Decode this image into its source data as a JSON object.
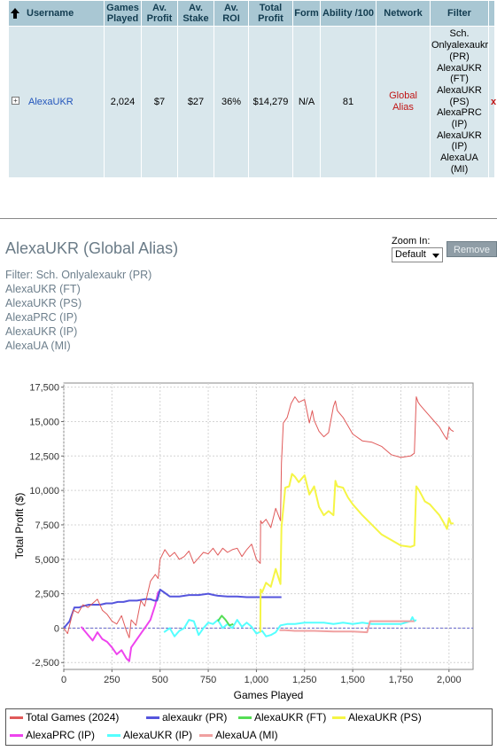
{
  "table": {
    "headers": [
      "Username",
      "Games Played",
      "Av. Profit",
      "Av. Stake",
      "Av. ROI",
      "Total Profit",
      "Form",
      "Ability /100",
      "Network",
      "Filter"
    ],
    "row": {
      "username": "AlexaUKR",
      "games_played": "2,024",
      "avg_profit": "$7",
      "avg_stake": "$27",
      "avg_roi": "36%",
      "total_profit": "$14,279",
      "form": "N/A",
      "ability": "81",
      "network": "Global Alias",
      "filter_lines": [
        "Sch.",
        "Onlyalexaukr",
        "(PR)",
        "AlexaUKR",
        "(FT)",
        "AlexaUKR",
        "(PS)",
        "AlexaPRC",
        "(IP)",
        "AlexaUKR",
        "(IP)",
        "AlexaUA",
        "(MI)"
      ],
      "remove": "x"
    }
  },
  "graph": {
    "title": "AlexaUKR (Global Alias)",
    "filter_lines": [
      "Filter: Sch. Onlyalexaukr (PR)",
      "AlexaUKR (FT)",
      "AlexaUKR (PS)",
      "AlexaPRC (IP)",
      "AlexaUKR (IP)",
      "AlexaUA (MI)"
    ],
    "zoom_label": "Zoom In:",
    "zoom_value": "Default",
    "remove_label": "Remove"
  },
  "chart_data": {
    "type": "line",
    "xlabel": "Games Played",
    "ylabel": "Total Profit ($)",
    "xlim": [
      0,
      2125
    ],
    "ylim": [
      -3000,
      17800
    ],
    "xticks": [
      "0",
      "250",
      "500",
      "750",
      "1,000",
      "1,250",
      "1,500",
      "1,750",
      "2,000"
    ],
    "xtick_values": [
      0,
      250,
      500,
      750,
      1000,
      1250,
      1500,
      1750,
      2000
    ],
    "yticks": [
      "-2,500",
      "0",
      "2,500",
      "5,000",
      "7,500",
      "10,000",
      "12,500",
      "15,000",
      "17,500"
    ],
    "ytick_values": [
      -2500,
      0,
      2500,
      5000,
      7500,
      10000,
      12500,
      15000,
      17500
    ],
    "grid": true,
    "legend_position": "bottom",
    "series": [
      {
        "name": "Total Games (2024)",
        "color": "#e05a5a",
        "width": 1,
        "x": [
          0,
          20,
          30,
          50,
          75,
          100,
          125,
          150,
          175,
          200,
          225,
          250,
          275,
          300,
          325,
          340,
          350,
          375,
          400,
          420,
          430,
          450,
          475,
          490,
          500,
          525,
          550,
          575,
          600,
          625,
          650,
          675,
          700,
          725,
          750,
          775,
          800,
          825,
          850,
          875,
          900,
          925,
          950,
          975,
          1000,
          1020,
          1022,
          1030,
          1050,
          1075,
          1100,
          1125,
          1130,
          1140,
          1160,
          1180,
          1200,
          1220,
          1250,
          1275,
          1290,
          1300,
          1325,
          1350,
          1375,
          1400,
          1410,
          1420,
          1450,
          1475,
          1500,
          1550,
          1600,
          1650,
          1700,
          1750,
          1800,
          1820,
          1830,
          1840,
          1850,
          1875,
          1900,
          1925,
          1950,
          1975,
          1990,
          2000,
          2010,
          2024
        ],
        "y": [
          0,
          -400,
          200,
          1300,
          1100,
          1700,
          1500,
          1800,
          2100,
          1300,
          1000,
          500,
          300,
          900,
          -200,
          -700,
          600,
          200,
          2000,
          1600,
          2200,
          3400,
          3900,
          3600,
          5000,
          5700,
          5200,
          5500,
          5000,
          5200,
          5600,
          4700,
          5100,
          5500,
          5400,
          5800,
          5300,
          5800,
          5500,
          5700,
          5800,
          5200,
          5700,
          6100,
          5000,
          4700,
          7800,
          7600,
          7900,
          7300,
          8700,
          7800,
          12000,
          14900,
          15300,
          16300,
          16800,
          16400,
          16600,
          14900,
          15800,
          15100,
          14300,
          13900,
          14200,
          16100,
          16500,
          15800,
          15300,
          14700,
          14100,
          13600,
          13500,
          13200,
          12600,
          12400,
          12500,
          12700,
          16800,
          16400,
          16200,
          15800,
          15400,
          15000,
          14600,
          14000,
          13700,
          14600,
          14400,
          14279
        ]
      },
      {
        "name": "alexaukr (PR)",
        "color": "#5555dd",
        "width": 2,
        "x": [
          0,
          30,
          45,
          55,
          80,
          100,
          130,
          160,
          190,
          220,
          250,
          280,
          310,
          340,
          380,
          420,
          450,
          470,
          485,
          500,
          520,
          550,
          600,
          650,
          700,
          750,
          780,
          800,
          850,
          900,
          950,
          1000,
          1050,
          1100,
          1130
        ],
        "y": [
          0,
          500,
          1100,
          1500,
          1500,
          1600,
          1700,
          1700,
          1700,
          1800,
          1800,
          1900,
          1900,
          2000,
          2000,
          2100,
          2100,
          2000,
          2000,
          2800,
          2600,
          2300,
          2300,
          2400,
          2400,
          2500,
          2400,
          2350,
          2300,
          2300,
          2250,
          2250,
          2250,
          2250,
          2250
        ]
      },
      {
        "name": "AlexaUKR (FT)",
        "color": "#55dd55",
        "width": 2,
        "x": [
          800,
          820,
          840,
          860,
          880
        ],
        "y": [
          500,
          900,
          600,
          200,
          300
        ]
      },
      {
        "name": "AlexaUKR (PS)",
        "color": "#f5f545",
        "width": 2,
        "x": [
          1020,
          1022,
          1030,
          1050,
          1075,
          1100,
          1125,
          1130,
          1150,
          1170,
          1185,
          1200,
          1220,
          1250,
          1275,
          1300,
          1325,
          1350,
          1375,
          1400,
          1410,
          1420,
          1450,
          1475,
          1500,
          1550,
          1600,
          1650,
          1700,
          1750,
          1800,
          1820,
          1830,
          1845,
          1860,
          1875,
          1900,
          1925,
          1950,
          1975,
          1990,
          2000,
          2010,
          2024
        ],
        "y": [
          -300,
          2800,
          2600,
          3300,
          3000,
          4300,
          3200,
          7300,
          10200,
          10300,
          11200,
          11000,
          10600,
          11100,
          9700,
          10300,
          8800,
          8200,
          8500,
          8200,
          10700,
          10300,
          10200,
          9500,
          9000,
          8200,
          7500,
          6800,
          6400,
          6000,
          5900,
          6000,
          10300,
          10000,
          9600,
          9200,
          9000,
          8600,
          8200,
          7600,
          7200,
          8000,
          7600,
          7600
        ]
      },
      {
        "name": "AlexaPRC (IP)",
        "color": "#ee44ee",
        "width": 2,
        "x": [
          90,
          120,
          150,
          175,
          200,
          225,
          250,
          275,
          300,
          325,
          340,
          350,
          375,
          400,
          425,
          450,
          475,
          490,
          500
        ],
        "y": [
          100,
          -400,
          -900,
          -300,
          -800,
          -1000,
          -1400,
          -1900,
          -1600,
          -2200,
          -2400,
          -1400,
          -900,
          -400,
          100,
          600,
          1700,
          2600,
          2700
        ]
      },
      {
        "name": "AlexaUKR (IP)",
        "color": "#55ffff",
        "width": 2,
        "x": [
          520,
          550,
          575,
          600,
          625,
          650,
          675,
          700,
          725,
          750,
          775,
          800,
          825,
          850,
          875,
          900,
          925,
          950,
          975,
          1000,
          1030,
          1050,
          1075,
          1100,
          1125,
          1160,
          1200,
          1250,
          1300,
          1350,
          1400,
          1450,
          1500,
          1550,
          1600,
          1650,
          1700,
          1750,
          1800,
          1810,
          1820,
          1830
        ],
        "y": [
          -300,
          0,
          -600,
          -200,
          0,
          600,
          500,
          -500,
          0,
          400,
          300,
          600,
          0,
          300,
          0,
          600,
          100,
          400,
          100,
          -400,
          -200,
          -600,
          -500,
          -300,
          200,
          300,
          300,
          400,
          400,
          400,
          300,
          400,
          300,
          400,
          300,
          300,
          300,
          300,
          500,
          800,
          500,
          600
        ]
      },
      {
        "name": "AlexaUA (MI)",
        "color": "#f0a0a0",
        "width": 2,
        "x": [
          1120,
          1150,
          1200,
          1300,
          1400,
          1500,
          1575,
          1590,
          1600,
          1650,
          1700,
          1750,
          1800,
          1820
        ],
        "y": [
          -150,
          -150,
          -200,
          -200,
          -250,
          -250,
          -300,
          500,
          500,
          500,
          500,
          500,
          500,
          500
        ]
      }
    ]
  }
}
